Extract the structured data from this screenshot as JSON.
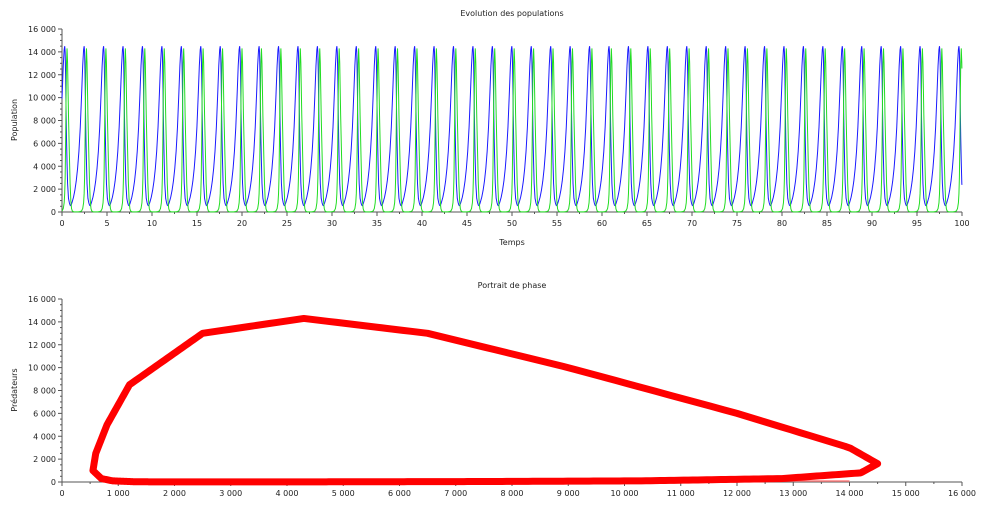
{
  "chart_data": [
    {
      "type": "line",
      "title": "Evolution des populations",
      "xlabel": "Temps",
      "ylabel": "Population",
      "xlim": [
        0,
        100
      ],
      "ylim": [
        0,
        16000
      ],
      "xticks": [
        0,
        5,
        10,
        15,
        20,
        25,
        30,
        35,
        40,
        45,
        50,
        55,
        60,
        65,
        70,
        75,
        80,
        85,
        90,
        95,
        100
      ],
      "yticks": [
        0,
        2000,
        4000,
        6000,
        8000,
        10000,
        12000,
        14000,
        16000
      ],
      "ytick_labels": [
        "0",
        "2 000",
        "4 000",
        "6 000",
        "8 000",
        "10 000",
        "12 000",
        "14 000",
        "16 000"
      ],
      "grid": false,
      "periodic_cycle": {
        "period": 2.16,
        "first_prey_peak_time": 0.3,
        "t": [
          0,
          0.08,
          0.16,
          0.3,
          0.45,
          0.6,
          0.75,
          0.9,
          1.05,
          1.2,
          1.32,
          1.42,
          1.48,
          1.53,
          1.58,
          1.63,
          1.68,
          1.74,
          1.8,
          1.9,
          2.0,
          2.08
        ],
        "prey": [
          550,
          700,
          900,
          1300,
          1900,
          2700,
          3800,
          5300,
          7400,
          10300,
          12800,
          14200,
          14500,
          14000,
          12000,
          9000,
          6500,
          4300,
          2500,
          1200,
          800,
          600
        ],
        "predators": [
          1000,
          300,
          100,
          20,
          10,
          10,
          10,
          20,
          40,
          100,
          300,
          800,
          1600,
          3000,
          6000,
          10000,
          13000,
          14300,
          13000,
          8500,
          5000,
          2500
        ]
      },
      "series": [
        {
          "key": "prey",
          "color": "#1a1aff"
        },
        {
          "key": "predators",
          "color": "#22dd22"
        }
      ]
    },
    {
      "type": "line",
      "title": "Portrait de phase",
      "xlabel": "",
      "ylabel": "Prédateurs",
      "xlim": [
        0,
        16000
      ],
      "ylim": [
        0,
        16000
      ],
      "xticks": [
        0,
        1000,
        2000,
        3000,
        4000,
        5000,
        6000,
        7000,
        8000,
        9000,
        10000,
        11000,
        12000,
        13000,
        14000,
        15000,
        16000
      ],
      "xtick_labels": [
        "0",
        "1 000",
        "2 000",
        "3 000",
        "4 000",
        "5 000",
        "6 000",
        "7 000",
        "8 000",
        "9 000",
        "10 000",
        "11 000",
        "12 000",
        "13 000",
        "14 000",
        "15 000",
        "16 000"
      ],
      "yticks": [
        0,
        2000,
        4000,
        6000,
        8000,
        10000,
        12000,
        14000,
        16000
      ],
      "ytick_labels": [
        "0",
        "2 000",
        "4 000",
        "6 000",
        "8 000",
        "10 000",
        "12 000",
        "14 000",
        "16 000"
      ],
      "grid": false,
      "series": [
        {
          "x_key": "prey",
          "y_key": "predators",
          "color": "#ff0000"
        }
      ]
    }
  ]
}
